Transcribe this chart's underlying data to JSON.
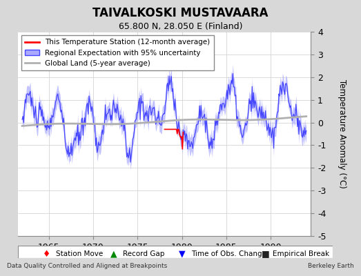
{
  "title": "TAIVALKOSKI MUSTAVAARA",
  "subtitle": "65.800 N, 28.050 E (Finland)",
  "ylabel": "Temperature Anomaly (°C)",
  "xlim": [
    1961.5,
    1994.5
  ],
  "ylim": [
    -5,
    4
  ],
  "yticks": [
    -5,
    -4,
    -3,
    -2,
    -1,
    0,
    1,
    2,
    3,
    4
  ],
  "xticks": [
    1965,
    1970,
    1975,
    1980,
    1985,
    1990
  ],
  "background_color": "#e8e8e8",
  "plot_bg_color": "#ffffff",
  "regional_color": "#4444ff",
  "regional_fill_color": "#aaaaff",
  "station_color": "#ff0000",
  "global_color": "#b0b0b0",
  "footer_left": "Data Quality Controlled and Aligned at Breakpoints",
  "footer_right": "Berkeley Earth",
  "legend_entries": [
    "This Temperature Station (12-month average)",
    "Regional Expectation with 95% uncertainty",
    "Global Land (5-year average)"
  ],
  "bottom_legend": [
    "Station Move",
    "Record Gap",
    "Time of Obs. Change",
    "Empirical Break"
  ],
  "bottom_legend_colors": [
    "#ff0000",
    "#008800",
    "#0000ff",
    "#222222"
  ],
  "bottom_legend_markers": [
    "D",
    "^",
    "v",
    "s"
  ]
}
